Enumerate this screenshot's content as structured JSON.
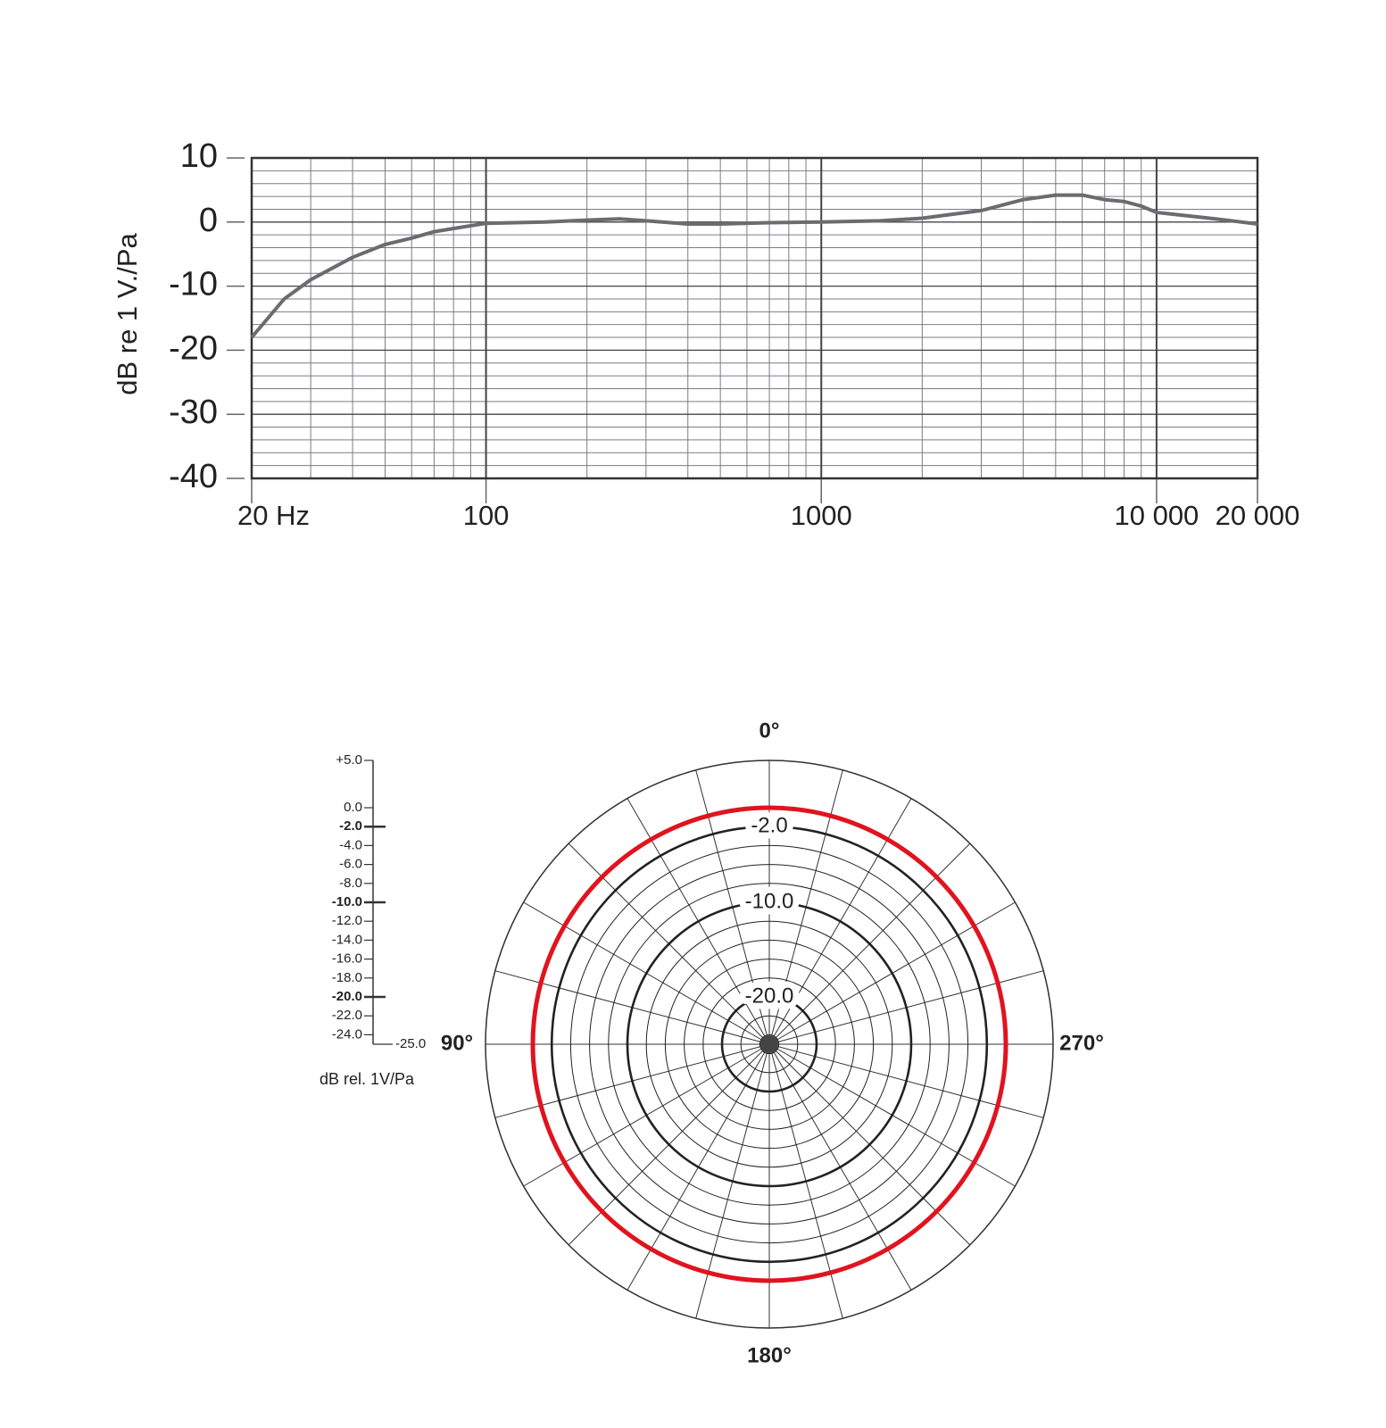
{
  "chart_data": [
    {
      "type": "line",
      "ylabel": "dB re 1 V./Pa",
      "xscale": "log",
      "grid": true,
      "xlim": [
        20,
        20000
      ],
      "ylim": [
        -40,
        10
      ],
      "xticks": [
        {
          "value": 20,
          "label": "20 Hz"
        },
        100,
        1000,
        {
          "value": 10000,
          "label": "10 000"
        },
        {
          "value": 20000,
          "label": "20 000"
        }
      ],
      "yticks": [
        10,
        0,
        -10,
        -20,
        -30,
        -40
      ],
      "x": [
        20,
        25,
        30,
        40,
        50,
        60,
        70,
        80,
        100,
        150,
        200,
        250,
        300,
        400,
        500,
        700,
        1000,
        1500,
        2000,
        3000,
        4000,
        5000,
        6000,
        7000,
        8000,
        9000,
        10000,
        15000,
        20000
      ],
      "series": [
        {
          "color": "#6b6b70",
          "values": [
            -18,
            -12,
            -9,
            -5.5,
            -3.5,
            -2.5,
            -1.5,
            -1,
            -0.2,
            0,
            0.3,
            0.5,
            0.2,
            -0.3,
            -0.3,
            -0.1,
            0,
            0.2,
            0.6,
            1.8,
            3.5,
            4.2,
            4.2,
            3.5,
            3.2,
            2.5,
            1.5,
            0.5,
            -0.3
          ]
        }
      ]
    },
    {
      "type": "polar",
      "rlabel": "dB rel. 1V/Pa",
      "direction": "counterclockwise",
      "theta_grid": 15,
      "rlim": [
        -25,
        5
      ],
      "rticks": [
        {
          "value": 5,
          "label": "+5.0"
        },
        {
          "value": 0,
          "label": "0.0"
        },
        {
          "value": -2,
          "label": "-2.0"
        },
        {
          "value": -4,
          "label": "-4.0"
        },
        {
          "value": -6,
          "label": "-6.0"
        },
        {
          "value": -8,
          "label": "-8.0"
        },
        {
          "value": -10,
          "label": "-10.0"
        },
        {
          "value": -12,
          "label": "-12.0"
        },
        {
          "value": -14,
          "label": "-14.0"
        },
        {
          "value": -16,
          "label": "-16.0"
        },
        {
          "value": -18,
          "label": "-18.0"
        },
        {
          "value": -20,
          "label": "-20.0"
        },
        {
          "value": -22,
          "label": "-22.0"
        },
        {
          "value": -24,
          "label": "-24.0"
        },
        {
          "value": -25,
          "label": "-25.0"
        }
      ],
      "bold_rticks": [
        -2,
        -10,
        -20
      ],
      "angle_labels": [
        {
          "value": 0,
          "label": "0°"
        },
        {
          "value": 90,
          "label": "90°"
        },
        {
          "value": 180,
          "label": "180°"
        },
        {
          "value": 270,
          "label": "270°"
        }
      ],
      "theta": [
        0,
        30,
        60,
        90,
        120,
        150,
        180,
        210,
        240,
        270,
        300,
        330
      ],
      "series": [
        {
          "color": "#e0141e",
          "values": [
            0,
            0,
            0,
            0,
            0,
            0,
            0,
            0,
            0,
            0,
            0,
            0
          ]
        }
      ]
    }
  ]
}
